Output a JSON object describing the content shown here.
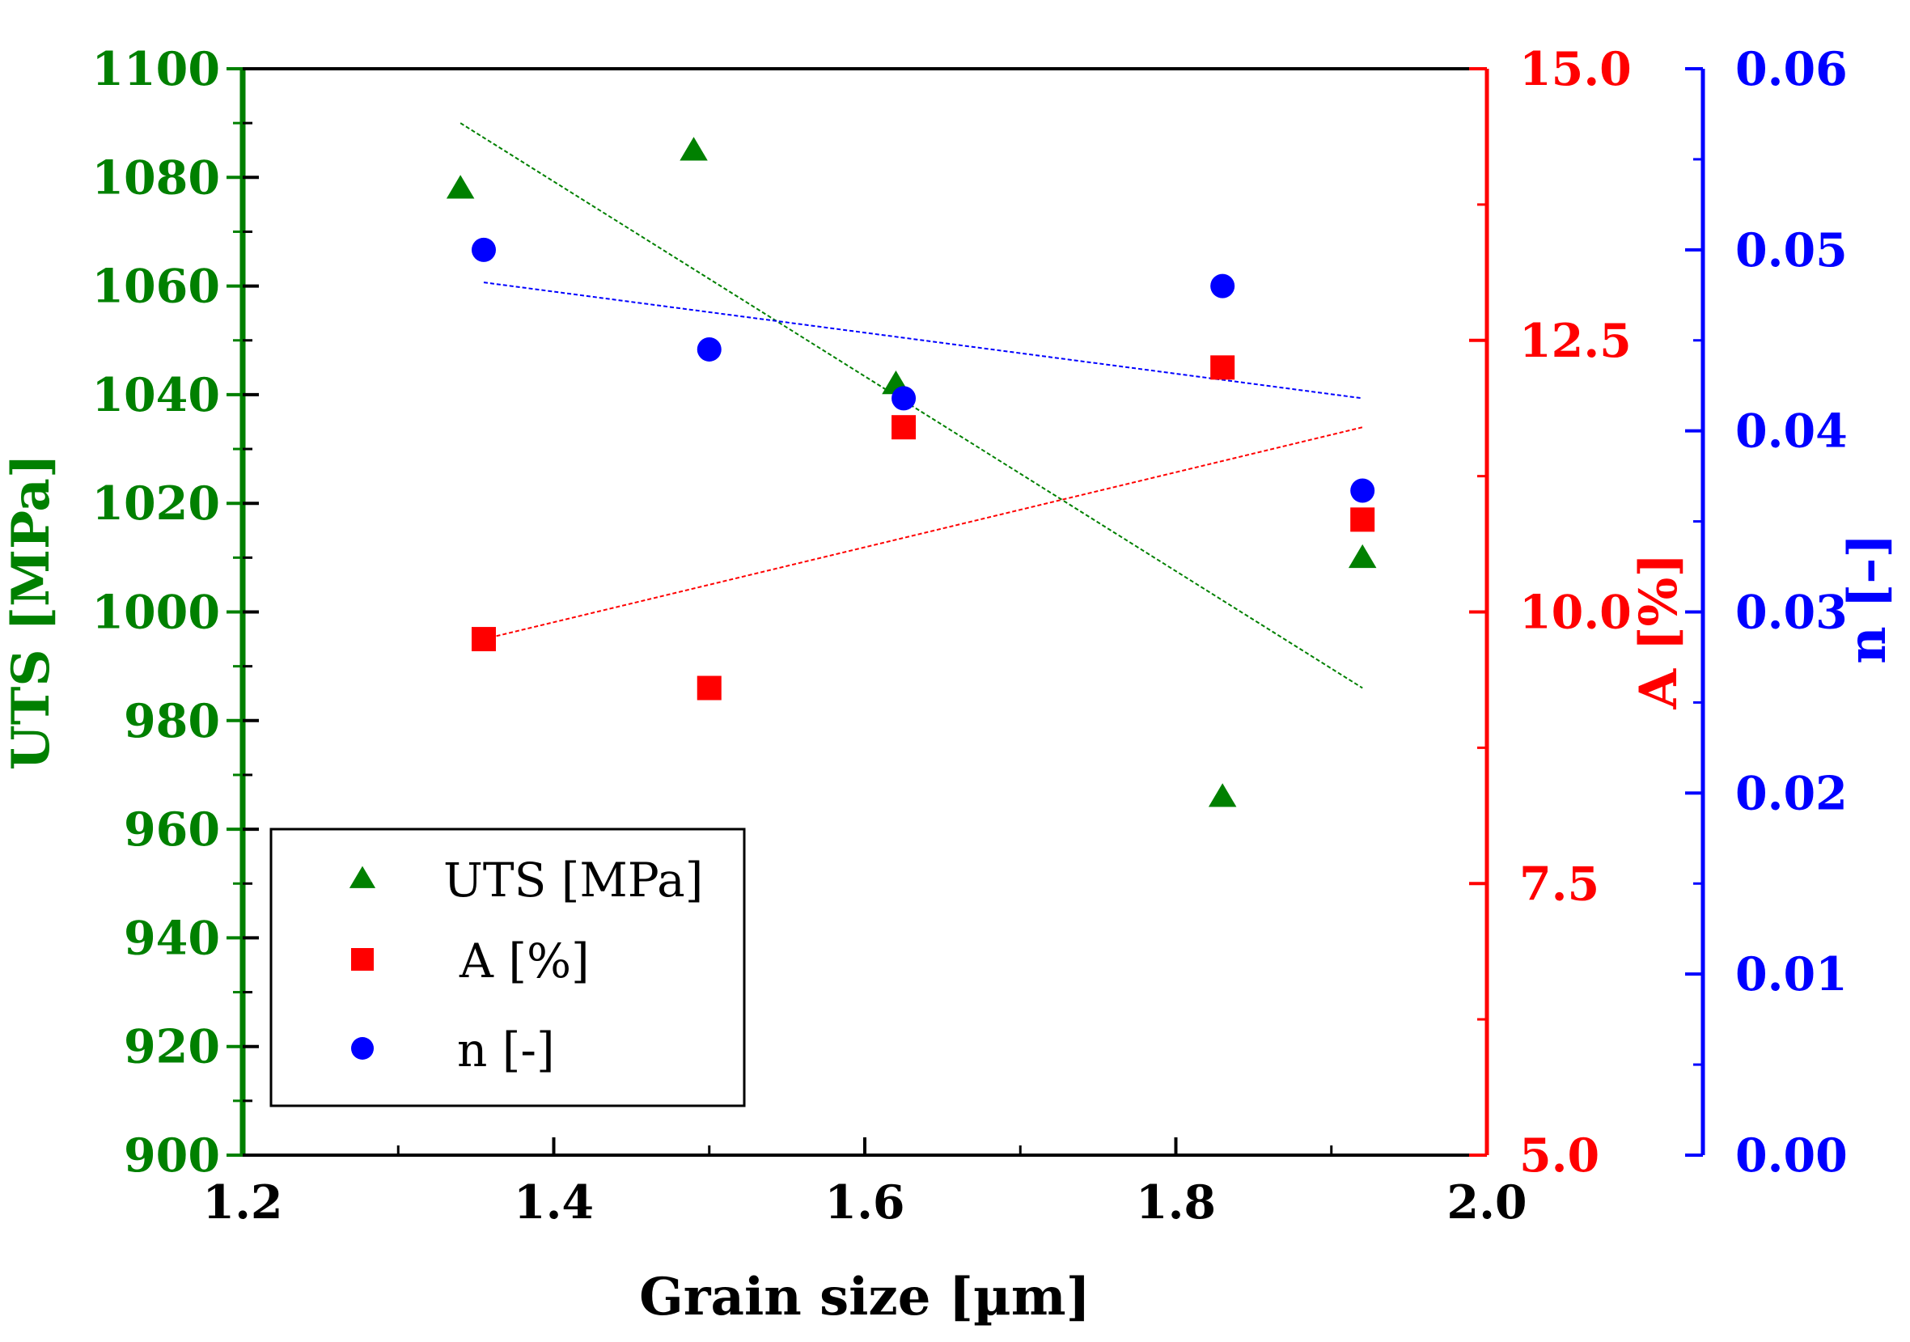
{
  "chart_data": {
    "type": "scatter",
    "title": "",
    "xlabel": "Grain size [µm]",
    "xlim": [
      1.2,
      2.0
    ],
    "x_ticks": [
      "1.2",
      "1.4",
      "1.6",
      "1.8",
      "2.0"
    ],
    "grid": false,
    "legend_position": "bottom-left",
    "axes": [
      {
        "id": "uts",
        "side": "left",
        "label": "UTS [MPa]",
        "color": "#008000",
        "ylim": [
          900,
          1100
        ],
        "ticks": [
          "900",
          "920",
          "940",
          "960",
          "980",
          "1000",
          "1020",
          "1040",
          "1060",
          "1080",
          "1100"
        ]
      },
      {
        "id": "a",
        "side": "right",
        "label": "A [%]",
        "color": "#ff0000",
        "ylim": [
          5.0,
          15.0
        ],
        "ticks": [
          "5.0",
          "7.5",
          "10.0",
          "12.5",
          "15.0"
        ]
      },
      {
        "id": "n",
        "side": "right-offset",
        "label": "n [–]",
        "color": "#0000ff",
        "ylim": [
          0.0,
          0.06
        ],
        "ticks": [
          "0.00",
          "0.01",
          "0.02",
          "0.03",
          "0.04",
          "0.05",
          "0.06"
        ]
      }
    ],
    "series": [
      {
        "name": "UTS [MPa]",
        "axis": "uts",
        "marker": "triangle",
        "color": "#008000",
        "x": [
          1.34,
          1.49,
          1.62,
          1.83,
          1.92
        ],
        "y": [
          1078,
          1085,
          1042,
          966,
          1010
        ],
        "trend": {
          "x": [
            1.34,
            1.92
          ],
          "y": [
            1090,
            986
          ]
        }
      },
      {
        "name": "A [%]",
        "axis": "a",
        "marker": "square",
        "color": "#ff0000",
        "x": [
          1.355,
          1.5,
          1.625,
          1.83,
          1.92
        ],
        "y": [
          9.75,
          9.3,
          11.7,
          12.25,
          10.85
        ],
        "trend": {
          "x": [
            1.355,
            1.92
          ],
          "y": [
            9.75,
            11.7
          ]
        }
      },
      {
        "name": "n [-]",
        "axis": "n",
        "marker": "circle",
        "color": "#0000ff",
        "x": [
          1.355,
          1.5,
          1.625,
          1.83,
          1.92
        ],
        "y": [
          0.05,
          0.0445,
          0.0418,
          0.048,
          0.0367
        ],
        "trend": {
          "x": [
            1.355,
            1.92
          ],
          "y": [
            0.0482,
            0.0418
          ]
        }
      }
    ]
  }
}
